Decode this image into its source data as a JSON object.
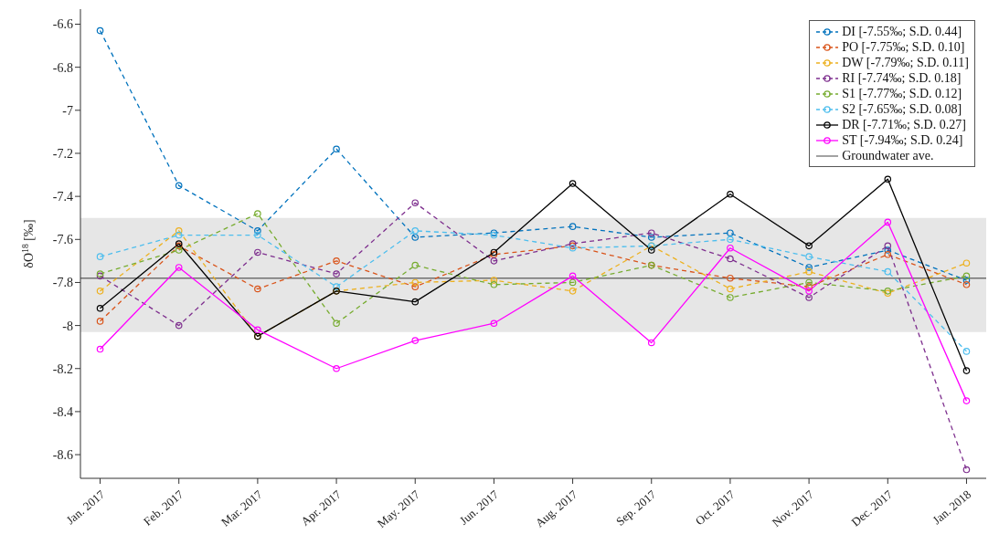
{
  "chart_data": {
    "type": "line",
    "ylabel": "δO$^{18}$ [‰]",
    "categories": [
      "Jan. 2017",
      "Feb. 2017",
      "Mar. 2017",
      "Apr. 2017",
      "May. 2017",
      "Jun. 2017",
      "Aug. 2017",
      "Sep. 2017",
      "Oct. 2017",
      "Nov. 2017",
      "Dec. 2017",
      "Jan. 2018"
    ],
    "series": [
      {
        "name": "DI [-7.55‰; S.D. 0.44]",
        "color": "#0072bd",
        "line_style": "dashed",
        "values": [
          -6.63,
          -7.35,
          -7.56,
          -7.18,
          -7.59,
          -7.57,
          -7.54,
          -7.59,
          -7.57,
          -7.73,
          -7.65,
          -7.79
        ]
      },
      {
        "name": "PO [-7.75‰; S.D. 0.10]",
        "color": "#d95319",
        "line_style": "dashed",
        "values": [
          -7.98,
          -7.63,
          -7.83,
          -7.7,
          -7.82,
          -7.67,
          -7.63,
          -7.72,
          -7.78,
          -7.82,
          -7.67,
          -7.81
        ]
      },
      {
        "name": "DW [-7.79‰; S.D. 0.11]",
        "color": "#edb120",
        "line_style": "dashed",
        "values": [
          -7.84,
          -7.56,
          -8.05,
          -7.84,
          -7.8,
          -7.79,
          -7.84,
          -7.63,
          -7.83,
          -7.75,
          -7.85,
          -7.71
        ]
      },
      {
        "name": "RI [-7.74‰; S.D. 0.18]",
        "color": "#7e2f8e",
        "line_style": "dashed",
        "values": [
          -7.77,
          -8.0,
          -7.66,
          -7.76,
          -7.43,
          -7.7,
          -7.62,
          -7.57,
          -7.69,
          -7.87,
          -7.63,
          -8.67
        ]
      },
      {
        "name": "S1 [-7.77‰; S.D. 0.12]",
        "color": "#77ac30",
        "line_style": "dashed",
        "values": [
          -7.76,
          -7.65,
          -7.48,
          -7.99,
          -7.72,
          -7.81,
          -7.8,
          -7.72,
          -7.87,
          -7.8,
          -7.84,
          -7.77
        ]
      },
      {
        "name": "S2 [-7.65‰; S.D. 0.08]",
        "color": "#4dbeee",
        "line_style": "dashed",
        "values": [
          -7.68,
          -7.58,
          -7.58,
          -7.82,
          -7.56,
          -7.58,
          -7.64,
          -7.63,
          -7.6,
          -7.68,
          -7.75,
          -8.12
        ]
      },
      {
        "name": "DR [-7.71‰; S.D. 0.27]",
        "color": "#000000",
        "line_style": "solid",
        "values": [
          -7.92,
          -7.62,
          -8.05,
          -7.84,
          -7.89,
          -7.66,
          -7.34,
          -7.65,
          -7.39,
          -7.63,
          -7.32,
          -8.21
        ]
      },
      {
        "name": "ST [-7.94‰; S.D. 0.24]",
        "color": "#ff00ff",
        "line_style": "solid",
        "values": [
          -8.11,
          -7.73,
          -8.02,
          -8.2,
          -8.07,
          -7.99,
          -7.77,
          -8.08,
          -7.64,
          -7.84,
          -7.52,
          -8.35
        ]
      }
    ],
    "ref_lines": [
      {
        "axis": "y",
        "value": -7.78,
        "label": "Groundwater ave.",
        "color": "#707070",
        "line_style": "solid"
      }
    ],
    "bands": [
      {
        "axis": "y",
        "from": -8.03,
        "to": -7.5,
        "color": "#e6e6e6"
      }
    ],
    "ylim": [
      -8.71,
      -6.53
    ],
    "yticks": [
      -8.6,
      -8.4,
      -8.2,
      -8,
      -7.8,
      -7.6,
      -7.4,
      -7.2,
      -7,
      -6.8,
      -6.6
    ],
    "marker": "circle",
    "legend": "top right"
  }
}
